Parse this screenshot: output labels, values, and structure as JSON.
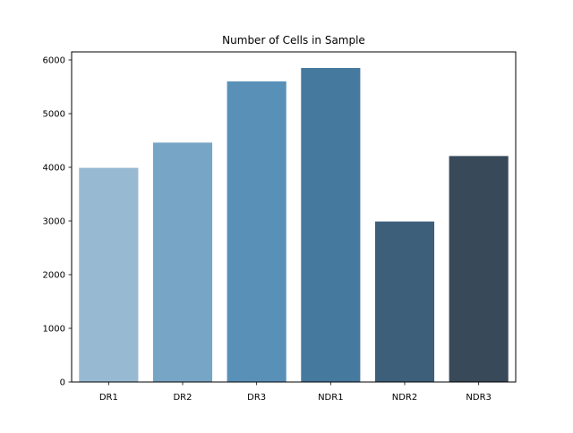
{
  "chart_data": {
    "type": "bar",
    "title": "Number of Cells in Sample",
    "xlabel": "",
    "ylabel": "",
    "categories": [
      "DR1",
      "DR2",
      "DR3",
      "NDR1",
      "NDR2",
      "NDR3"
    ],
    "values": [
      3990,
      4460,
      5600,
      5850,
      2990,
      4210
    ],
    "colors": [
      "#98b9d2",
      "#77a5c5",
      "#5990b8",
      "#46799e",
      "#3e5f7a",
      "#384a59"
    ],
    "ylim": [
      0,
      6150
    ],
    "yticks": [
      0,
      1000,
      2000,
      3000,
      4000,
      5000,
      6000
    ],
    "grid": false,
    "legend": "none"
  }
}
